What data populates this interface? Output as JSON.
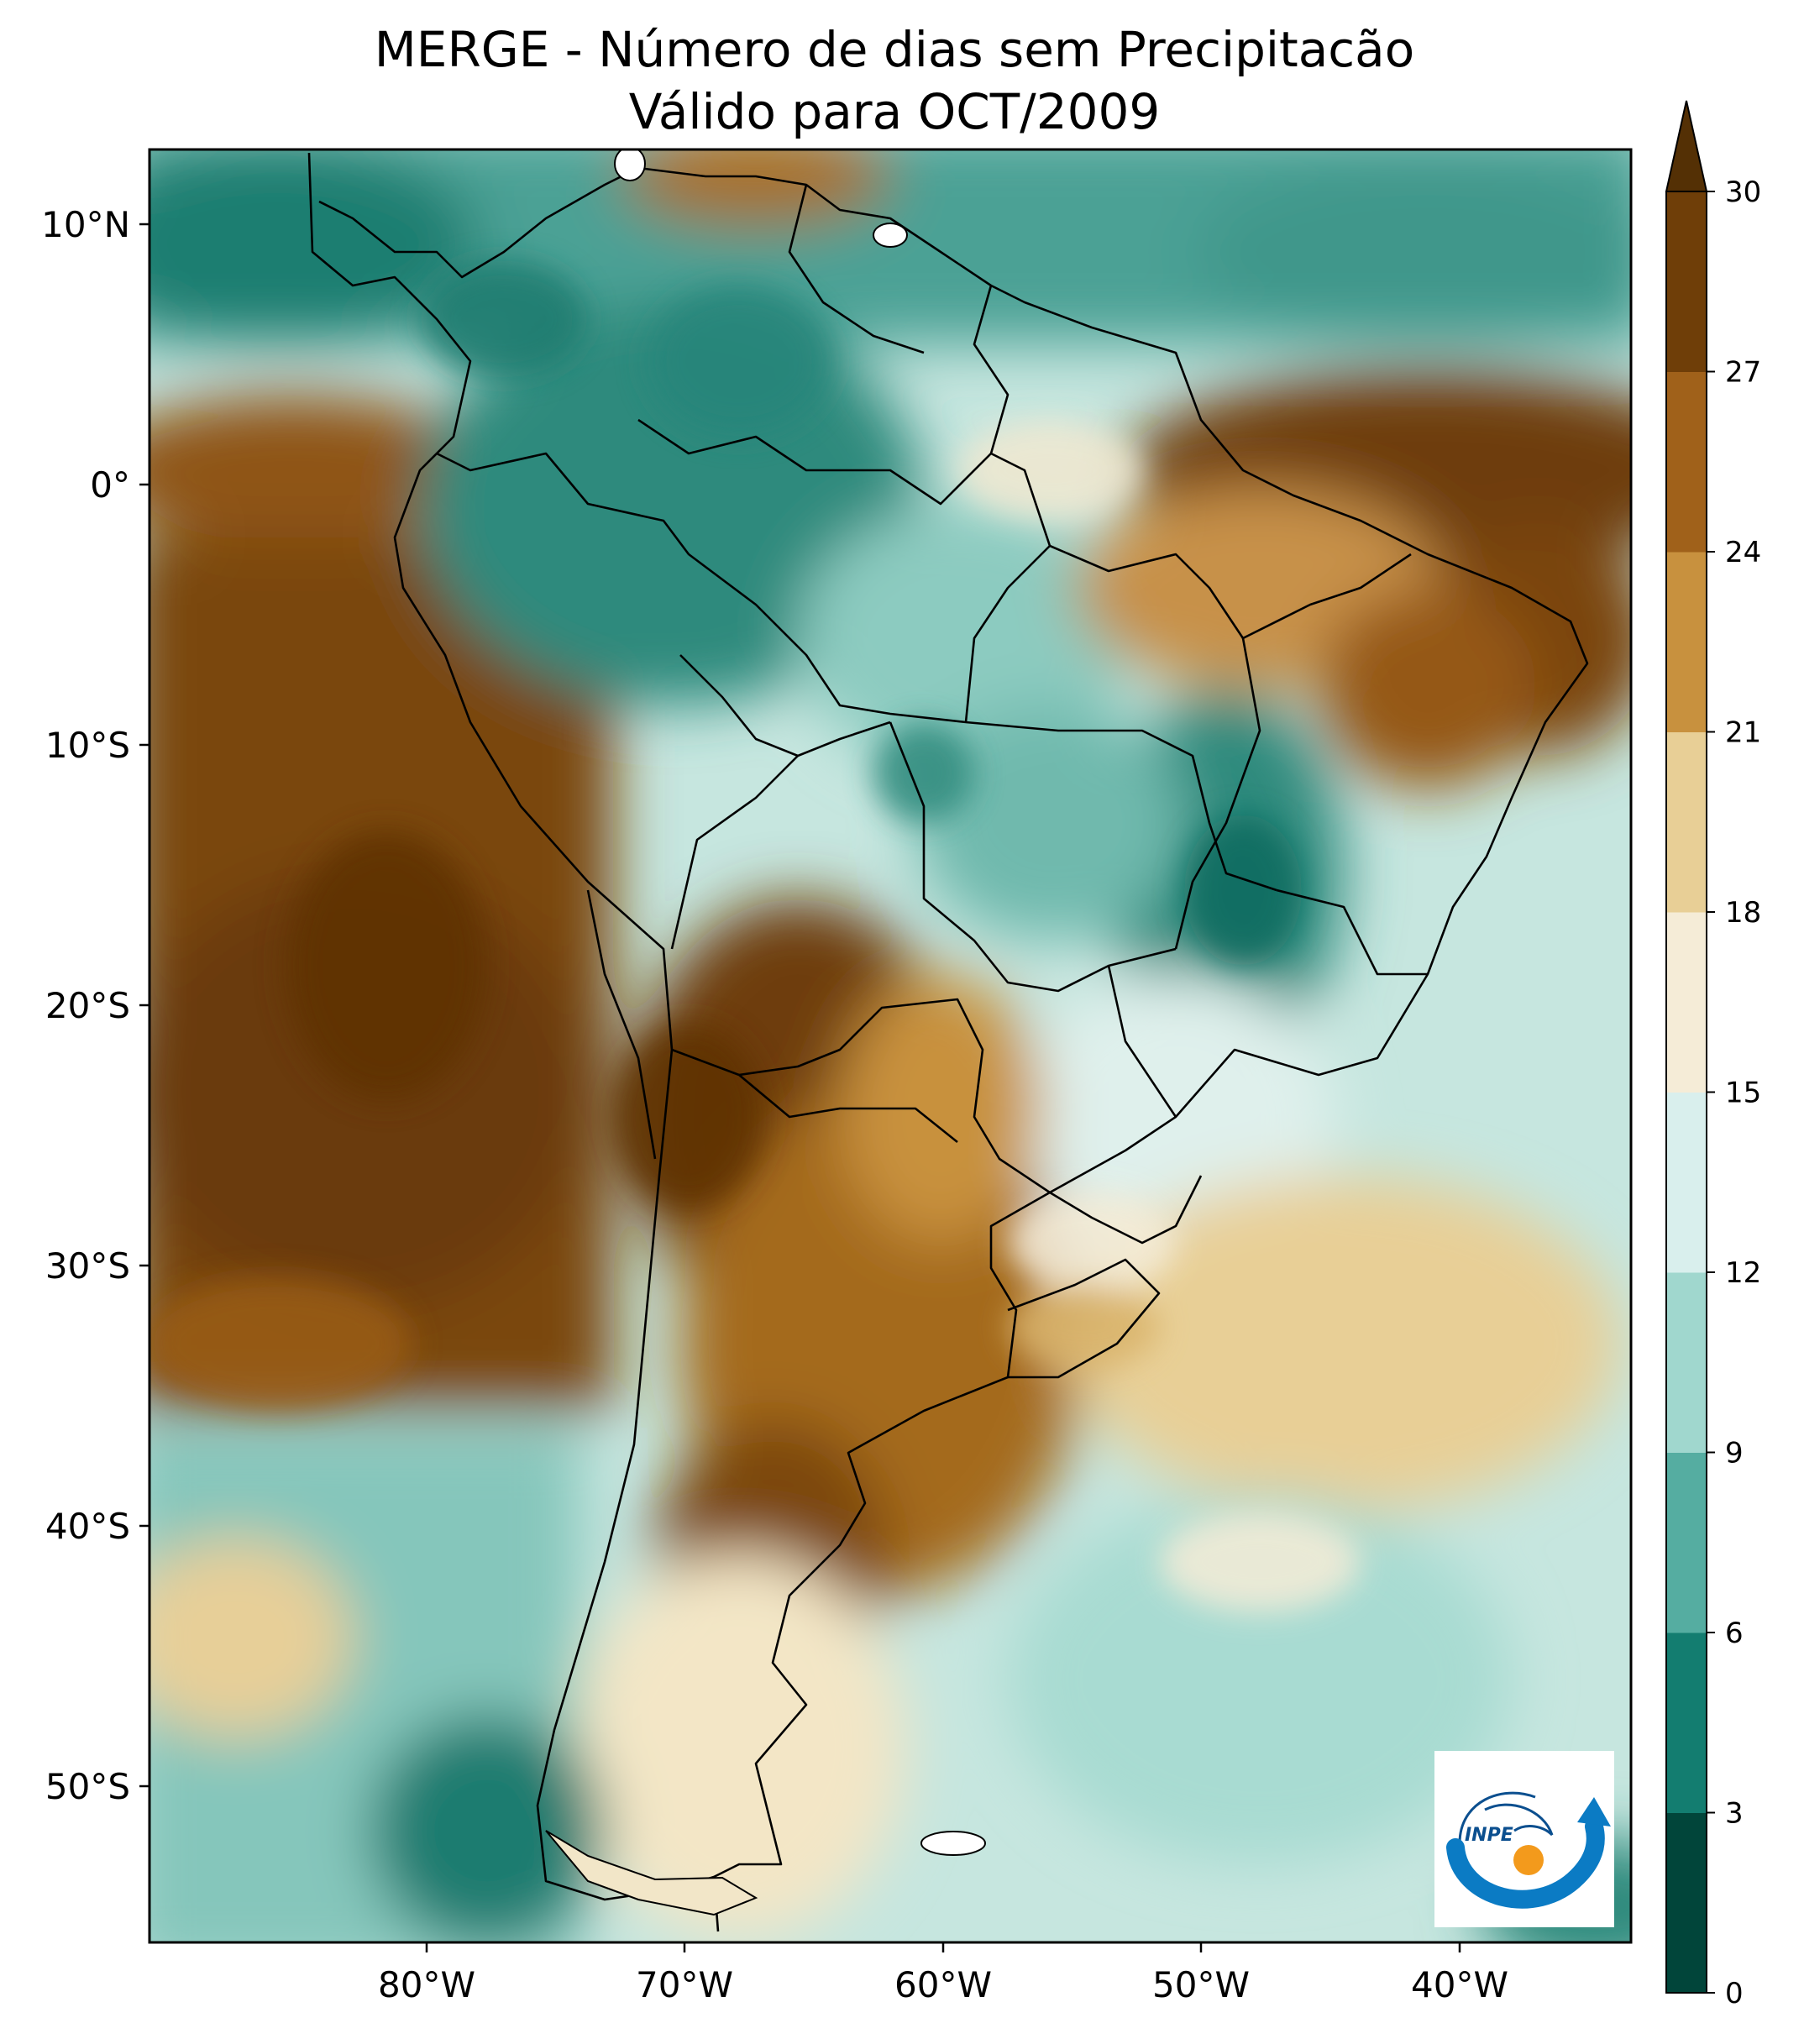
{
  "title": {
    "line1": "MERGE - Número de dias sem Precipitacão",
    "line2": "Válido para OCT/2009"
  },
  "axes": {
    "lat_ticks": [
      "10°N",
      "0°",
      "10°S",
      "20°S",
      "30°S",
      "40°S",
      "50°S"
    ],
    "lon_ticks": [
      "80°W",
      "70°W",
      "60°W",
      "50°W",
      "40°W"
    ]
  },
  "colorbar": {
    "ticks": [
      "0",
      "3",
      "6",
      "9",
      "12",
      "15",
      "18",
      "21",
      "24",
      "27",
      "30"
    ],
    "colors": [
      "#01453a",
      "#137d70",
      "#55ada1",
      "#a0d7ce",
      "#d9efed",
      "#f5ecd7",
      "#e8cf96",
      "#c8913e",
      "#a0611a",
      "#6f3e08"
    ],
    "extend_color": "#543005"
  },
  "logo": {
    "text": "INPE"
  },
  "palette": {
    "ocean_wet": "#1c7f72",
    "ocean_mid": "#9fd6cc",
    "light": "#e5f3ef",
    "cream": "#f5ecd7",
    "tan": "#d9b36a",
    "brown": "#a46a1f",
    "dark_brown": "#6b3a07"
  }
}
